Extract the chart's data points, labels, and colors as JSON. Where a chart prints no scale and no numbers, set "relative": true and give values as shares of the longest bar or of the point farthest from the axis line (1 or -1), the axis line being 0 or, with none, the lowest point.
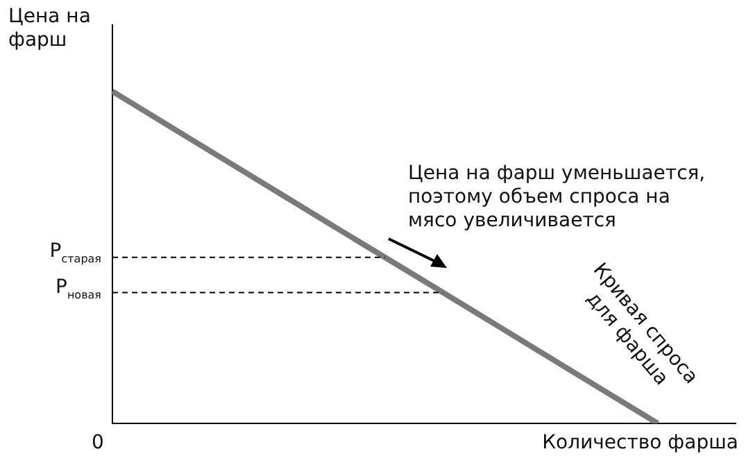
{
  "chart_data": {
    "type": "line",
    "relative": true,
    "xlabel": "Количество фарша",
    "ylabel": "Цена на фарш",
    "categories": [
      null,
      null,
      null,
      null,
      null,
      null,
      null,
      null,
      null
    ],
    "series": [
      {
        "color": "#7a7a7a",
        "values": [
          1,
          0.857,
          0.714,
          0.571,
          0.429,
          0.286,
          0.143,
          0,
          null
        ]
      }
    ],
    "ref_lines": [
      {
        "axis": "y",
        "value": 0.5,
        "label": "P$_{старая}$",
        "line_style": "dashed",
        "color": "#000000"
      },
      {
        "axis": "y",
        "value": 0.394,
        "label": "P$_{новая}$",
        "line_style": "dashed",
        "color": "#000000"
      }
    ],
    "annotations": [
      "0",
      "Цена на фарш уменьшается, поэтому объем спроса на мясо увеличивается",
      "Кривая спроса для фарша"
    ],
    "legend": false,
    "grid": false,
    "marker": "none",
    "line_style": "solid"
  }
}
